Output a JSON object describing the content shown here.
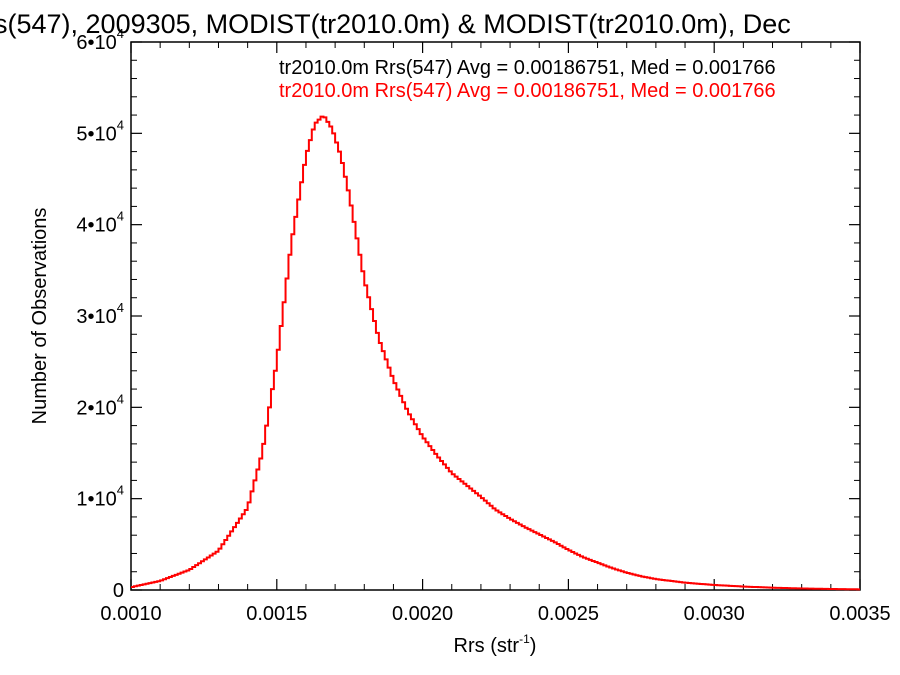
{
  "chart_data": {
    "type": "line",
    "title": "s(547), 2009305, MODIST(tr2010.0m) & MODIST(tr2010.0m), Dec",
    "xlabel": "Rrs (str",
    "xlabel_sup": "-1",
    "xlabel_tail": ")",
    "ylabel": "Number of Observations",
    "xlim": [
      0.001,
      0.0035
    ],
    "ylim": [
      0,
      60000
    ],
    "x_ticks": [
      {
        "value": 0.001,
        "label": "0.0010"
      },
      {
        "value": 0.0015,
        "label": "0.0015"
      },
      {
        "value": 0.002,
        "label": "0.0020"
      },
      {
        "value": 0.0025,
        "label": "0.0025"
      },
      {
        "value": 0.003,
        "label": "0.0030"
      },
      {
        "value": 0.0035,
        "label": "0.0035"
      }
    ],
    "y_ticks": [
      {
        "value": 0,
        "label": "0",
        "exp": ""
      },
      {
        "value": 10000,
        "label": "1•10",
        "exp": "4"
      },
      {
        "value": 20000,
        "label": "2•10",
        "exp": "4"
      },
      {
        "value": 30000,
        "label": "3•10",
        "exp": "4"
      },
      {
        "value": 40000,
        "label": "4•10",
        "exp": "4"
      },
      {
        "value": 50000,
        "label": "5•10",
        "exp": "4"
      },
      {
        "value": 60000,
        "label": "6•10",
        "exp": "4"
      }
    ],
    "annotations": [
      {
        "text": "tr2010.0m Rrs(547) Avg = 0.00186751, Med = 0.001766",
        "color": "#000000"
      },
      {
        "text": "tr2010.0m Rrs(547) Avg = 0.00186751, Med = 0.001766",
        "color": "#ff0000"
      }
    ],
    "series": [
      {
        "color": "#ff0000",
        "style": "step",
        "points": [
          [
            0.001,
            300
          ],
          [
            0.0011,
            1000
          ],
          [
            0.0012,
            2200
          ],
          [
            0.0013,
            4300
          ],
          [
            0.0014,
            9000
          ],
          [
            0.00145,
            15000
          ],
          [
            0.0015,
            25000
          ],
          [
            0.00155,
            38000
          ],
          [
            0.0016,
            47500
          ],
          [
            0.00163,
            51000
          ],
          [
            0.00166,
            52000
          ],
          [
            0.00169,
            50500
          ],
          [
            0.00172,
            47500
          ],
          [
            0.00175,
            43000
          ],
          [
            0.0018,
            34000
          ],
          [
            0.00185,
            27500
          ],
          [
            0.0019,
            23000
          ],
          [
            0.00195,
            19500
          ],
          [
            0.002,
            16800
          ],
          [
            0.00205,
            14700
          ],
          [
            0.0021,
            12800
          ],
          [
            0.00215,
            11500
          ],
          [
            0.0022,
            10200
          ],
          [
            0.00225,
            8800
          ],
          [
            0.0023,
            7800
          ],
          [
            0.00235,
            6900
          ],
          [
            0.0024,
            6100
          ],
          [
            0.00245,
            5300
          ],
          [
            0.0025,
            4400
          ],
          [
            0.00255,
            3600
          ],
          [
            0.0026,
            3000
          ],
          [
            0.00265,
            2400
          ],
          [
            0.0027,
            1900
          ],
          [
            0.00275,
            1500
          ],
          [
            0.0028,
            1200
          ],
          [
            0.0029,
            800
          ],
          [
            0.003,
            550
          ],
          [
            0.0031,
            380
          ],
          [
            0.0032,
            250
          ],
          [
            0.0033,
            170
          ],
          [
            0.0034,
            110
          ],
          [
            0.0035,
            70
          ]
        ]
      }
    ]
  }
}
